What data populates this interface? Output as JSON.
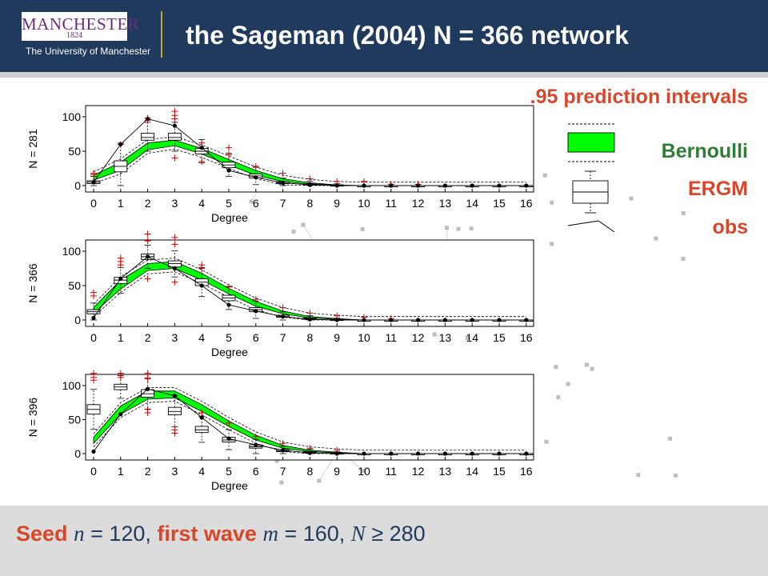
{
  "header": {
    "logo_name": "MANCHESTER",
    "logo_year": "1824",
    "logo_subtitle": "The University of Manchester",
    "title": "the Sageman (2004) N = 366 network"
  },
  "legend": {
    "prediction": ".95 prediction intervals",
    "bernoulli": "Bernoulli",
    "ergm": "ERGM",
    "obs": "obs"
  },
  "footer": {
    "seed_label": "Seed",
    "n_var": "n",
    "n_value": " = 120, ",
    "wave_label": "first wave",
    "m_var": "m",
    "m_value": " = 160, ",
    "N_var": "N",
    "N_value": " ≥ 280"
  },
  "colors": {
    "bernoulli": "#00ff00",
    "ergm_box": "#000000",
    "outlier": "#cc0000",
    "obs": "#000000"
  },
  "chart_data": [
    {
      "type": "box",
      "ylabel": "N = 281",
      "xlabel": "Degree",
      "x": [
        0,
        1,
        2,
        3,
        4,
        5,
        6,
        7,
        8,
        9,
        10,
        11,
        12,
        13,
        14,
        15,
        16
      ],
      "ylim": [
        0,
        100
      ],
      "yticks": [
        0,
        50,
        100
      ],
      "bernoulli_band": {
        "lo": [
          8,
          22,
          52,
          58,
          46,
          30,
          15,
          6,
          2,
          1,
          0,
          0,
          0,
          0,
          0,
          0,
          0
        ],
        "hi": [
          15,
          34,
          62,
          66,
          54,
          38,
          22,
          10,
          4,
          1,
          0,
          0,
          0,
          0,
          0,
          0,
          0
        ]
      },
      "ergm_box": {
        "median": [
          5,
          28,
          70,
          70,
          50,
          30,
          14,
          4,
          2,
          1,
          0,
          0,
          0,
          0,
          0,
          0,
          0
        ],
        "q1": [
          3,
          20,
          66,
          66,
          46,
          26,
          11,
          3,
          1,
          0,
          0,
          0,
          0,
          0,
          0,
          0,
          0
        ],
        "q3": [
          7,
          36,
          76,
          76,
          54,
          34,
          17,
          6,
          3,
          1,
          0,
          0,
          0,
          0,
          0,
          0,
          0
        ]
      },
      "outliers": [
        [
          0,
          18
        ],
        [
          0,
          16
        ],
        [
          1,
          60
        ],
        [
          2,
          95
        ],
        [
          2,
          98
        ],
        [
          3,
          102
        ],
        [
          3,
          108
        ],
        [
          3,
          97
        ],
        [
          3,
          40
        ],
        [
          4,
          62
        ],
        [
          4,
          35
        ],
        [
          5,
          55
        ],
        [
          5,
          45
        ],
        [
          6,
          28
        ],
        [
          7,
          18
        ],
        [
          8,
          10
        ],
        [
          9,
          6
        ],
        [
          10,
          6
        ],
        [
          11,
          2
        ],
        [
          12,
          2
        ]
      ],
      "obs": [
        5,
        60,
        97,
        87,
        55,
        22,
        12,
        4,
        1,
        0,
        0,
        0,
        0,
        0,
        0,
        0,
        0
      ]
    },
    {
      "type": "box",
      "ylabel": "N = 366",
      "xlabel": "Degree",
      "x": [
        0,
        1,
        2,
        3,
        4,
        5,
        6,
        7,
        8,
        9,
        10,
        11,
        12,
        13,
        14,
        15,
        16
      ],
      "ylim": [
        0,
        100
      ],
      "yticks": [
        0,
        50,
        100
      ],
      "bernoulli_band": {
        "lo": [
          10,
          45,
          72,
          75,
          58,
          38,
          20,
          9,
          3,
          1,
          0,
          0,
          0,
          0,
          0,
          0,
          0
        ],
        "hi": [
          18,
          58,
          82,
          85,
          68,
          46,
          27,
          13,
          5,
          2,
          0,
          0,
          0,
          0,
          0,
          0,
          0
        ]
      },
      "ergm_box": {
        "median": [
          12,
          58,
          92,
          82,
          55,
          32,
          15,
          5,
          2,
          1,
          0,
          0,
          0,
          0,
          0,
          0,
          0
        ],
        "q1": [
          9,
          53,
          88,
          77,
          50,
          28,
          12,
          4,
          1,
          0,
          0,
          0,
          0,
          0,
          0,
          0,
          0
        ],
        "q3": [
          15,
          62,
          96,
          86,
          60,
          36,
          18,
          7,
          3,
          1,
          0,
          0,
          0,
          0,
          0,
          0,
          0
        ]
      },
      "outliers": [
        [
          0,
          40
        ],
        [
          0,
          35
        ],
        [
          1,
          90
        ],
        [
          1,
          85
        ],
        [
          1,
          80
        ],
        [
          2,
          125
        ],
        [
          2,
          115
        ],
        [
          2,
          60
        ],
        [
          3,
          120
        ],
        [
          3,
          110
        ],
        [
          3,
          55
        ],
        [
          4,
          80
        ],
        [
          4,
          75
        ],
        [
          5,
          48
        ],
        [
          6,
          30
        ],
        [
          7,
          18
        ],
        [
          8,
          10
        ],
        [
          9,
          6
        ],
        [
          10,
          4
        ],
        [
          11,
          2
        ]
      ],
      "obs": [
        3,
        60,
        92,
        75,
        50,
        22,
        13,
        5,
        1,
        0,
        0,
        0,
        0,
        0,
        0,
        0,
        0
      ]
    },
    {
      "type": "box",
      "ylabel": "N = 396",
      "xlabel": "Degree",
      "x": [
        0,
        1,
        2,
        3,
        4,
        5,
        6,
        7,
        8,
        9,
        10,
        11,
        12,
        13,
        14,
        15,
        16
      ],
      "ylim": [
        0,
        100
      ],
      "yticks": [
        0,
        50,
        100
      ],
      "bernoulli_band": {
        "lo": [
          15,
          58,
          80,
          82,
          62,
          40,
          20,
          8,
          3,
          1,
          0,
          0,
          0,
          0,
          0,
          0,
          0
        ],
        "hi": [
          24,
          70,
          92,
          92,
          72,
          48,
          27,
          12,
          5,
          2,
          0,
          0,
          0,
          0,
          0,
          0,
          0
        ]
      },
      "ergm_box": {
        "median": [
          65,
          98,
          88,
          62,
          35,
          20,
          10,
          4,
          2,
          1,
          0,
          0,
          0,
          0,
          0,
          0,
          0
        ],
        "q1": [
          58,
          94,
          83,
          57,
          31,
          17,
          8,
          3,
          1,
          0,
          0,
          0,
          0,
          0,
          0,
          0,
          0
        ],
        "q3": [
          72,
          102,
          94,
          68,
          40,
          24,
          13,
          6,
          3,
          1,
          0,
          0,
          0,
          0,
          0,
          0,
          0
        ]
      },
      "outliers": [
        [
          0,
          118
        ],
        [
          0,
          112
        ],
        [
          0,
          108
        ],
        [
          1,
          118
        ],
        [
          1,
          112
        ],
        [
          2,
          118
        ],
        [
          2,
          110
        ],
        [
          2,
          65
        ],
        [
          2,
          60
        ],
        [
          3,
          35
        ],
        [
          3,
          30
        ],
        [
          4,
          60
        ],
        [
          5,
          45
        ],
        [
          6,
          25
        ],
        [
          7,
          15
        ],
        [
          8,
          8
        ],
        [
          9,
          5
        ]
      ],
      "obs": [
        3,
        58,
        95,
        85,
        53,
        22,
        13,
        5,
        1,
        0,
        0,
        0,
        0,
        0,
        0,
        0,
        0
      ]
    }
  ]
}
